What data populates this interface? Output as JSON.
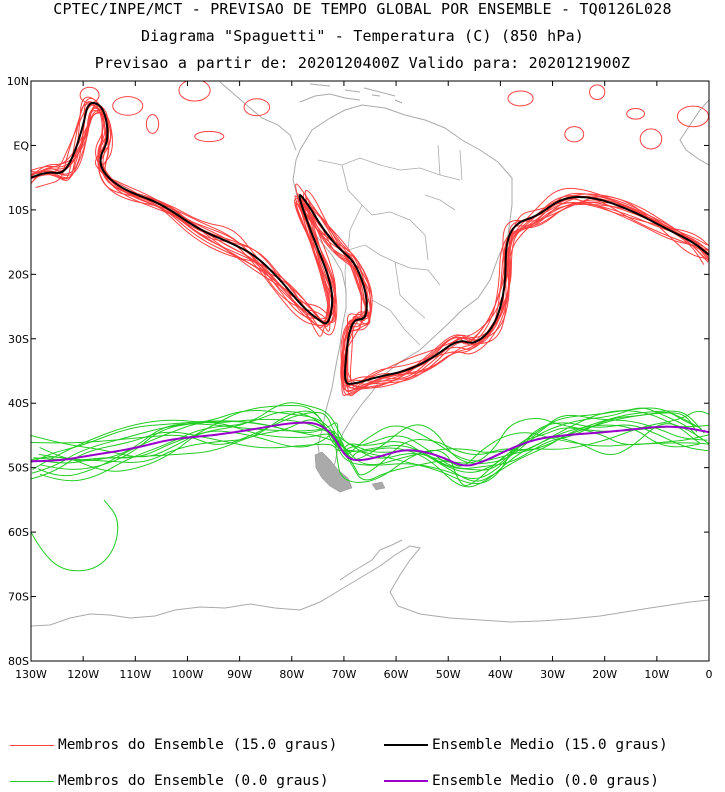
{
  "titles": {
    "line1": "CPTEC/INPE/MCT - PREVISAO DE TEMPO GLOBAL POR ENSEMBLE - TQ0126L028",
    "line2": "Diagrama \"Spaguetti\" - Temperatura (C) (850 hPa)",
    "line3": "Previsao a partir de: 2020120400Z  Valido para: 2020121900Z"
  },
  "axes": {
    "lat_labels": [
      "10N",
      "EQ",
      "10S",
      "20S",
      "30S",
      "40S",
      "50S",
      "60S",
      "70S",
      "80S"
    ],
    "lon_labels": [
      "130W",
      "120W",
      "110W",
      "100W",
      "90W",
      "80W",
      "70W",
      "60W",
      "50W",
      "40W",
      "30W",
      "20W",
      "10W",
      "0"
    ],
    "lat_range": [
      -80,
      10
    ],
    "lon_range": [
      -130,
      0
    ]
  },
  "legend": [
    {
      "label": "Membros do Ensemble (15.0 graus)",
      "color": "#ff4040",
      "width": 1
    },
    {
      "label": "Ensemble Medio (15.0 graus)",
      "color": "#000000",
      "width": 2
    },
    {
      "label": "Membros do Ensemble (0.0 graus)",
      "color": "#22cc22",
      "width": 1
    },
    {
      "label": "Ensemble Medio (0.0 graus)",
      "color": "#9900cc",
      "width": 2
    }
  ],
  "chart_data": {
    "type": "contour-spaghetti",
    "field": "Temperatura 850 hPa",
    "units": "C",
    "contour_levels": [
      15.0,
      0.0
    ],
    "members_15_color": "#ff4040",
    "mean_15_color": "#000000",
    "members_0_color": "#22cc22",
    "mean_0_color": "#9900cc",
    "ensemble_mean_15C": [
      [
        -130,
        -5
      ],
      [
        -127,
        -4
      ],
      [
        -124,
        -4.5
      ],
      [
        -122,
        -2
      ],
      [
        -120,
        3
      ],
      [
        -119,
        7
      ],
      [
        -116,
        6
      ],
      [
        -115,
        1
      ],
      [
        -117,
        -2
      ],
      [
        -116,
        -4.5
      ],
      [
        -112,
        -7
      ],
      [
        -105,
        -9
      ],
      [
        -98,
        -13
      ],
      [
        -92,
        -15
      ],
      [
        -87,
        -17
      ],
      [
        -82,
        -21
      ],
      [
        -78,
        -25
      ],
      [
        -75,
        -27
      ],
      [
        -73,
        -28
      ],
      [
        -72,
        -24
      ],
      [
        -73,
        -20
      ],
      [
        -77,
        -12
      ],
      [
        -79,
        -7
      ],
      [
        -77,
        -9
      ],
      [
        -74,
        -13
      ],
      [
        -71,
        -16
      ],
      [
        -68,
        -18
      ],
      [
        -66,
        -22
      ],
      [
        -65.5,
        -25
      ],
      [
        -66,
        -27
      ],
      [
        -68,
        -27
      ],
      [
        -69,
        -29
      ],
      [
        -69.5,
        -32
      ],
      [
        -70,
        -37
      ],
      [
        -68,
        -37
      ],
      [
        -64,
        -36
      ],
      [
        -58,
        -35
      ],
      [
        -53,
        -33
      ],
      [
        -48,
        -30
      ],
      [
        -45,
        -31
      ],
      [
        -41,
        -28
      ],
      [
        -39,
        -22
      ],
      [
        -39,
        -15
      ],
      [
        -37,
        -12
      ],
      [
        -33,
        -11
      ],
      [
        -28,
        -8
      ],
      [
        -22,
        -8
      ],
      [
        -15,
        -10
      ],
      [
        -8,
        -13
      ],
      [
        -3,
        -15
      ],
      [
        0,
        -17
      ]
    ],
    "ensemble_mean_0C": [
      [
        -130,
        -49
      ],
      [
        -125,
        -49
      ],
      [
        -118,
        -48
      ],
      [
        -110,
        -47
      ],
      [
        -103,
        -45.5
      ],
      [
        -95,
        -45
      ],
      [
        -87,
        -44
      ],
      [
        -80,
        -43
      ],
      [
        -75,
        -43
      ],
      [
        -72,
        -45
      ],
      [
        -70,
        -48
      ],
      [
        -68,
        -49
      ],
      [
        -64,
        -48.5
      ],
      [
        -58,
        -47
      ],
      [
        -52,
        -48
      ],
      [
        -47,
        -50
      ],
      [
        -43,
        -49
      ],
      [
        -38,
        -47
      ],
      [
        -33,
        -45.5
      ],
      [
        -28,
        -45
      ],
      [
        -20,
        -44.5
      ],
      [
        -14,
        -44
      ],
      [
        -8,
        -43.5
      ],
      [
        -3,
        -44
      ],
      [
        0,
        -44.5
      ]
    ]
  }
}
